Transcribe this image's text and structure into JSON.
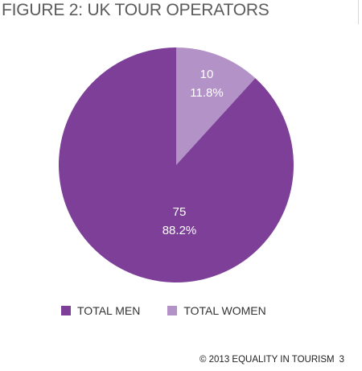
{
  "figure": {
    "title": "FIGURE 2: UK TOUR OPERATORS"
  },
  "colors": {
    "men": "#7d3f98",
    "women": "#b393c7",
    "title": "#5b5b5b"
  },
  "chart_data": {
    "type": "pie",
    "title": "FIGURE 2: UK TOUR OPERATORS",
    "legend_position": "bottom",
    "series": [
      {
        "name": "TOTAL MEN",
        "value": 75,
        "percent_label": "88.2%",
        "color": "#7d3f98"
      },
      {
        "name": "TOTAL WOMEN",
        "value": 10,
        "percent_label": "11.8%",
        "color": "#b393c7"
      }
    ]
  },
  "legend": {
    "items": [
      {
        "label": "TOTAL MEN"
      },
      {
        "label": "TOTAL WOMEN"
      }
    ]
  },
  "footer": {
    "copyright": "© 2013 EQUALITY IN TOURISM",
    "page": "3"
  }
}
